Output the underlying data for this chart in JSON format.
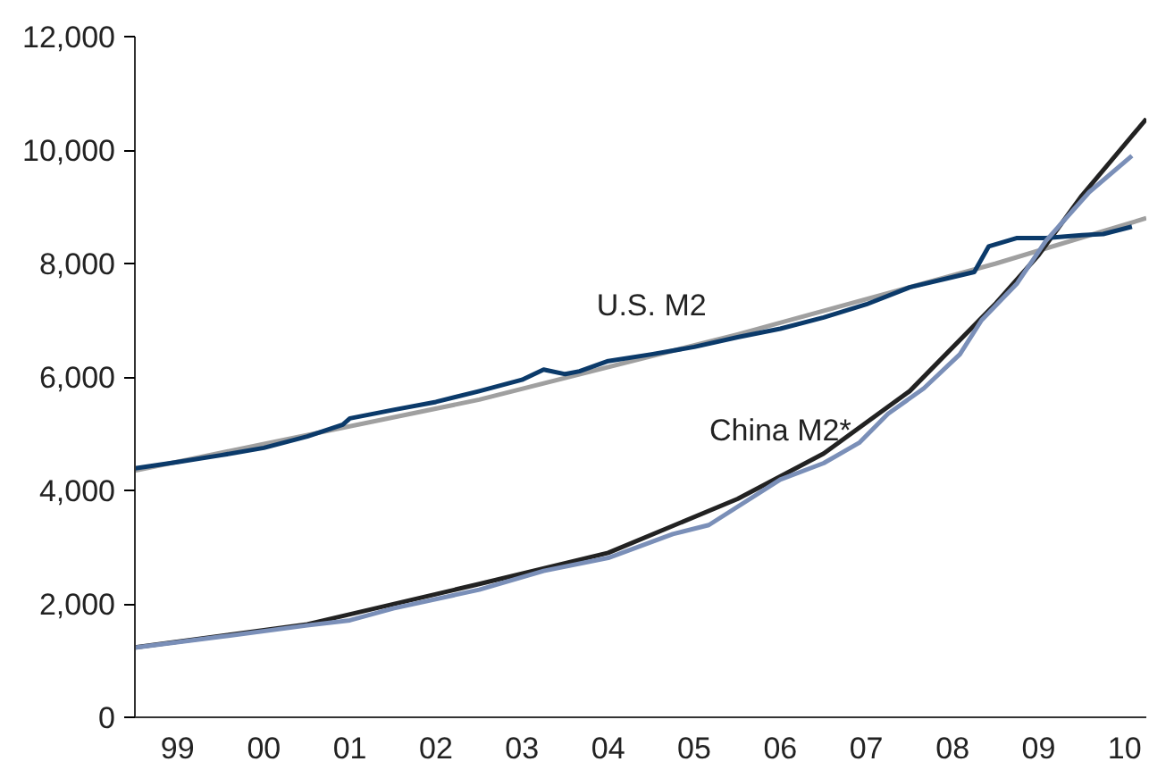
{
  "chart_data": {
    "type": "line",
    "xlim": [
      "1999-01",
      "2010-10"
    ],
    "ylim": [
      0,
      12000
    ],
    "xticks": [
      {
        "value": "1999-07",
        "label": "99"
      },
      {
        "value": "2000-07",
        "label": "00"
      },
      {
        "value": "2001-07",
        "label": "01"
      },
      {
        "value": "2002-07",
        "label": "02"
      },
      {
        "value": "2003-07",
        "label": "03"
      },
      {
        "value": "2004-07",
        "label": "04"
      },
      {
        "value": "2005-07",
        "label": "05"
      },
      {
        "value": "2006-07",
        "label": "06"
      },
      {
        "value": "2007-07",
        "label": "07"
      },
      {
        "value": "2008-07",
        "label": "08"
      },
      {
        "value": "2009-07",
        "label": "09"
      },
      {
        "value": "2010-07",
        "label": "10"
      }
    ],
    "yticks": [
      {
        "value": 0,
        "label": "0"
      },
      {
        "value": 2000,
        "label": "2,000"
      },
      {
        "value": 4000,
        "label": "4,000"
      },
      {
        "value": 6000,
        "label": "6,000"
      },
      {
        "value": 8000,
        "label": "8,000"
      },
      {
        "value": 10000,
        "label": "10,000"
      },
      {
        "value": 12000,
        "label": "12,000"
      }
    ],
    "grid": false,
    "legend": false,
    "marker": "none",
    "line_style": "solid",
    "series": [
      {
        "color": "#a0a0a0",
        "x": [
          "1999-01",
          "2003-01",
          "2006-01",
          "2009-01",
          "2010-10"
        ],
        "values": [
          4350,
          5600,
          6750,
          8000,
          8800
        ]
      },
      {
        "color": "#222222",
        "x": [
          "1999-01",
          "2001-01",
          "2003-01",
          "2004-07",
          "2006-01",
          "2007-01",
          "2008-01",
          "2009-01",
          "2009-07",
          "2010-01",
          "2010-10"
        ],
        "values": [
          1230,
          1640,
          2350,
          2900,
          3850,
          4650,
          5750,
          7300,
          8150,
          9200,
          10550
        ]
      },
      {
        "name": "U.S. M2",
        "color": "#0b3a6a",
        "x": [
          "1999-01",
          "1999-07",
          "2000-01",
          "2000-07",
          "2001-01",
          "2001-06",
          "2001-07",
          "2002-01",
          "2002-07",
          "2003-01",
          "2003-07",
          "2003-10",
          "2004-01",
          "2004-03",
          "2004-07",
          "2005-01",
          "2005-07",
          "2006-01",
          "2006-07",
          "2007-01",
          "2007-07",
          "2008-01",
          "2008-07",
          "2008-10",
          "2008-12",
          "2009-04",
          "2009-08",
          "2010-01",
          "2010-04",
          "2010-08"
        ],
        "values": [
          4390,
          4500,
          4620,
          4750,
          4950,
          5160,
          5270,
          5420,
          5560,
          5750,
          5950,
          6130,
          6050,
          6100,
          6280,
          6400,
          6530,
          6700,
          6850,
          7050,
          7280,
          7580,
          7760,
          7850,
          8300,
          8450,
          8450,
          8500,
          8520,
          8650
        ]
      },
      {
        "name": "China M2*",
        "color": "#7a8fb8",
        "x": [
          "1999-01",
          "2000-01",
          "2001-01",
          "2001-07",
          "2002-01",
          "2003-01",
          "2003-10",
          "2004-07",
          "2005-04",
          "2005-09",
          "2006-07",
          "2007-01",
          "2007-06",
          "2007-10",
          "2008-03",
          "2008-08",
          "2008-11",
          "2009-04",
          "2009-08",
          "2010-02",
          "2010-08"
        ],
        "values": [
          1230,
          1420,
          1620,
          1710,
          1920,
          2250,
          2580,
          2810,
          3230,
          3390,
          4190,
          4480,
          4840,
          5350,
          5800,
          6400,
          7000,
          7650,
          8400,
          9260,
          9900
        ]
      }
    ]
  }
}
